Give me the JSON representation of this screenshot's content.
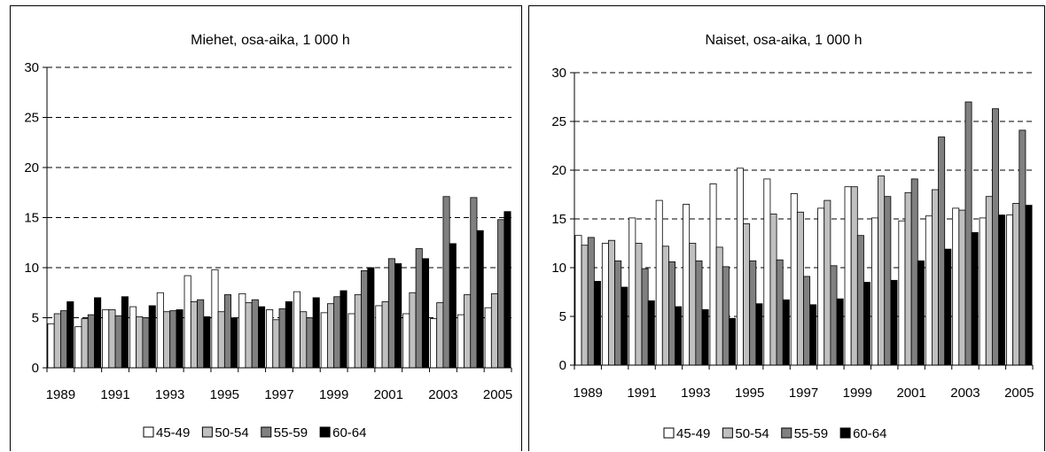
{
  "chart_data": [
    {
      "type": "bar",
      "title": "Miehet, osa-aika, 1 000 h",
      "xlabel": "",
      "ylabel": "",
      "ylim": [
        0,
        30
      ],
      "yticks": [
        "0",
        "5",
        "10",
        "15",
        "20",
        "25",
        "30"
      ],
      "categories": [
        "1989",
        "1990",
        "1991",
        "1992",
        "1993",
        "1994",
        "1995",
        "1996",
        "1997",
        "1998",
        "1999",
        "2000",
        "2001",
        "2002",
        "2003",
        "2004",
        "2005"
      ],
      "xtick_labels": [
        "1989",
        "1991",
        "1993",
        "1995",
        "1997",
        "1999",
        "2001",
        "2003",
        "2005"
      ],
      "grid": "horizontal dashed",
      "legend_position": "bottom",
      "series": [
        {
          "name": "45-49",
          "color": "#ffffff",
          "values": [
            4.4,
            4.1,
            5.8,
            6.1,
            7.5,
            9.2,
            9.8,
            7.4,
            5.8,
            7.6,
            5.5,
            5.4,
            6.2,
            5.4,
            4.9,
            5.3,
            6.0
          ]
        },
        {
          "name": "50-54",
          "color": "#c0c0c0",
          "values": [
            5.4,
            4.9,
            5.8,
            5.1,
            5.6,
            6.6,
            5.6,
            6.5,
            4.8,
            5.6,
            6.4,
            7.3,
            6.6,
            7.5,
            6.5,
            7.3,
            7.4
          ]
        },
        {
          "name": "55-59",
          "color": "#808080",
          "values": [
            5.7,
            5.3,
            5.2,
            5.0,
            5.7,
            6.8,
            7.3,
            6.8,
            5.9,
            5.0,
            7.1,
            9.7,
            10.9,
            11.9,
            17.1,
            17.0,
            14.8
          ]
        },
        {
          "name": "60-64",
          "color": "#000000",
          "values": [
            6.6,
            7.0,
            7.1,
            6.2,
            5.8,
            5.1,
            5.0,
            6.1,
            6.6,
            7.0,
            7.7,
            10.0,
            10.4,
            10.9,
            12.4,
            13.7,
            15.6
          ]
        }
      ]
    },
    {
      "type": "bar",
      "title": "Naiset, osa-aika, 1 000 h",
      "xlabel": "",
      "ylabel": "",
      "ylim": [
        0,
        30
      ],
      "yticks": [
        "0",
        "5",
        "10",
        "15",
        "20",
        "25",
        "30"
      ],
      "categories": [
        "1989",
        "1990",
        "1991",
        "1992",
        "1993",
        "1994",
        "1995",
        "1996",
        "1997",
        "1998",
        "1999",
        "2000",
        "2001",
        "2002",
        "2003",
        "2004",
        "2005"
      ],
      "xtick_labels": [
        "1989",
        "1991",
        "1993",
        "1995",
        "1997",
        "1999",
        "2001",
        "2003",
        "2005"
      ],
      "grid": "horizontal dashed",
      "legend_position": "bottom",
      "series": [
        {
          "name": "45-49",
          "color": "#ffffff",
          "values": [
            13.3,
            12.5,
            15.1,
            16.9,
            16.5,
            18.6,
            20.2,
            19.1,
            17.6,
            16.1,
            18.3,
            15.1,
            14.8,
            15.3,
            16.1,
            15.1,
            15.4
          ]
        },
        {
          "name": "50-54",
          "color": "#c0c0c0",
          "values": [
            12.3,
            12.8,
            12.5,
            12.2,
            12.5,
            12.1,
            14.5,
            15.5,
            15.7,
            16.9,
            18.3,
            19.4,
            17.7,
            18.0,
            15.9,
            17.3,
            16.6
          ]
        },
        {
          "name": "55-59",
          "color": "#808080",
          "values": [
            13.1,
            10.7,
            9.9,
            10.6,
            10.7,
            10.1,
            10.7,
            10.8,
            9.1,
            10.2,
            13.3,
            17.3,
            19.1,
            23.4,
            27.0,
            26.3,
            24.1
          ]
        },
        {
          "name": "60-64",
          "color": "#000000",
          "values": [
            8.6,
            8.0,
            6.6,
            6.0,
            5.7,
            4.8,
            6.3,
            6.7,
            6.2,
            6.8,
            8.5,
            8.7,
            10.7,
            11.9,
            13.6,
            15.4,
            16.4
          ]
        }
      ]
    }
  ]
}
